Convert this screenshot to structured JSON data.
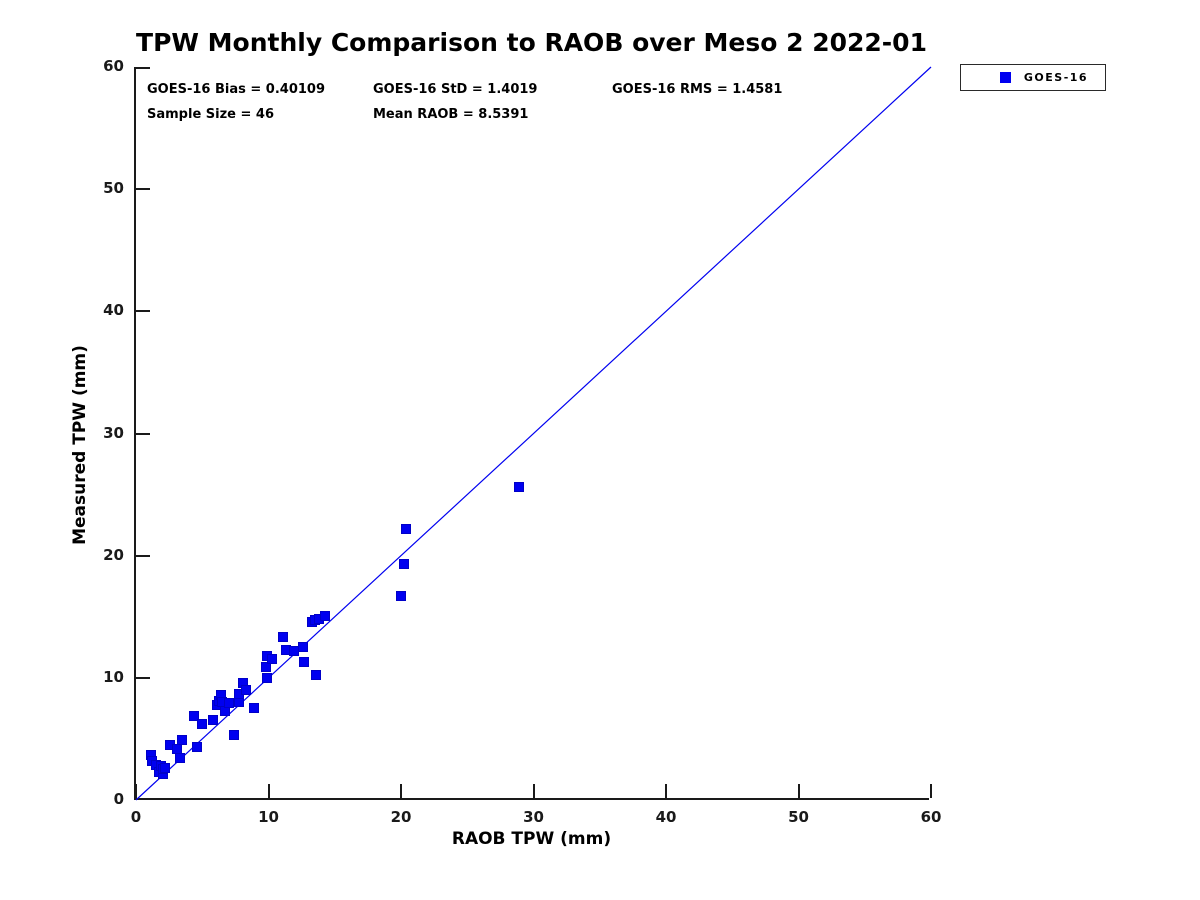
{
  "title": "TPW Monthly Comparison to RAOB over Meso 2 2022-01",
  "legend": {
    "items": [
      {
        "label": "GOES-16",
        "marker_color": "#0000f0"
      }
    ]
  },
  "chart_data": {
    "type": "scatter",
    "title": "TPW Monthly Comparison to RAOB over Meso 2 2022-01",
    "xlabel": "RAOB TPW (mm)",
    "ylabel": "Measured TPW (mm)",
    "xlim": [
      0,
      60
    ],
    "ylim": [
      0,
      60
    ],
    "xticks": [
      0,
      10,
      20,
      30,
      40,
      50,
      60
    ],
    "yticks": [
      0,
      10,
      20,
      30,
      40,
      50,
      60
    ],
    "grid": false,
    "legend_position": "top-right-outside",
    "annotations": [
      {
        "text": "GOES-16 Bias = 0.40109"
      },
      {
        "text": "GOES-16 StD = 1.4019"
      },
      {
        "text": "GOES-16 RMS = 1.4581"
      },
      {
        "text": "Sample Size = 46"
      },
      {
        "text": "Mean RAOB = 8.5391"
      }
    ],
    "reference_line": {
      "type": "identity",
      "from": [
        0,
        0
      ],
      "to": [
        60,
        60
      ],
      "color": "#0000f0",
      "width": 1.2
    },
    "series": [
      {
        "name": "GOES-16",
        "marker": "square",
        "color": "#0000f0",
        "points": [
          [
            1.1,
            3.66
          ],
          [
            1.2,
            3.2
          ],
          [
            1.5,
            2.9
          ],
          [
            1.7,
            2.3
          ],
          [
            1.9,
            2.75
          ],
          [
            2.0,
            2.1
          ],
          [
            2.0,
            2.5
          ],
          [
            2.2,
            2.6
          ],
          [
            2.57,
            4.5
          ],
          [
            3.12,
            4.2
          ],
          [
            3.33,
            3.47
          ],
          [
            3.46,
            4.9
          ],
          [
            4.4,
            6.9
          ],
          [
            4.6,
            4.3
          ],
          [
            5.0,
            6.25
          ],
          [
            5.8,
            6.55
          ],
          [
            6.1,
            7.8
          ],
          [
            6.3,
            8.1
          ],
          [
            6.45,
            8.6
          ],
          [
            6.5,
            8.0
          ],
          [
            6.7,
            7.3
          ],
          [
            7.0,
            7.9
          ],
          [
            7.4,
            5.3
          ],
          [
            7.8,
            8.0
          ],
          [
            7.8,
            8.65
          ],
          [
            8.1,
            9.6
          ],
          [
            8.3,
            9.0
          ],
          [
            8.9,
            7.5
          ],
          [
            9.8,
            10.9
          ],
          [
            9.85,
            10.0
          ],
          [
            9.9,
            11.75
          ],
          [
            10.3,
            11.55
          ],
          [
            11.1,
            13.35
          ],
          [
            11.35,
            12.3
          ],
          [
            11.9,
            12.2
          ],
          [
            12.6,
            12.55
          ],
          [
            12.7,
            11.3
          ],
          [
            13.3,
            14.6
          ],
          [
            13.5,
            14.7
          ],
          [
            13.6,
            10.2
          ],
          [
            13.8,
            14.8
          ],
          [
            14.3,
            15.1
          ],
          [
            20.0,
            16.7
          ],
          [
            20.2,
            19.3
          ],
          [
            20.4,
            22.2
          ],
          [
            28.9,
            25.6
          ]
        ]
      }
    ]
  }
}
